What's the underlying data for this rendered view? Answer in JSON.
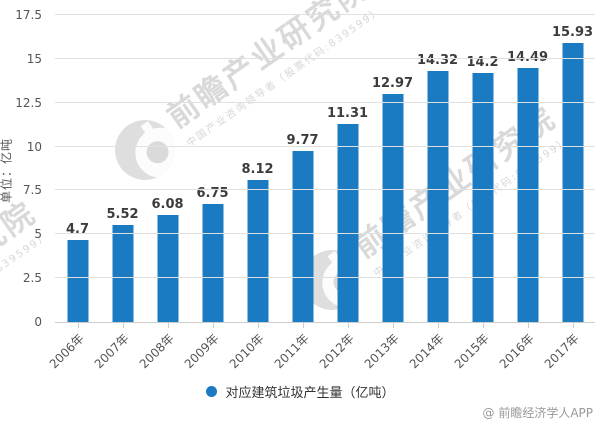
{
  "credit": "@ 前瞻经济学人APP",
  "watermark": {
    "brand": "前瞻产业研究院",
    "tagline": "中国产业咨询领导者（股票代码:839599）"
  },
  "chart_data": {
    "type": "bar",
    "title": "",
    "xlabel": "",
    "ylabel": "单位：亿吨",
    "categories": [
      "2006年",
      "2007年",
      "2008年",
      "2009年",
      "2010年",
      "2011年",
      "2012年",
      "2013年",
      "2014年",
      "2015年",
      "2016年",
      "2017年"
    ],
    "values": [
      4.7,
      5.52,
      6.08,
      6.75,
      8.12,
      9.77,
      11.31,
      12.97,
      14.32,
      14.2,
      14.49,
      15.93
    ],
    "value_labels": [
      "4.7",
      "5.52",
      "6.08",
      "6.75",
      "8.12",
      "9.77",
      "11.31",
      "12.97",
      "14.32",
      "14.2",
      "14.49",
      "15.93"
    ],
    "ylim": [
      0,
      17.5
    ],
    "yticks": [
      0,
      2.5,
      5,
      7.5,
      10,
      12.5,
      15,
      17.5
    ],
    "ytick_labels": [
      "0",
      "2.5",
      "5",
      "7.5",
      "10",
      "12.5",
      "15",
      "17.5"
    ],
    "grid": true,
    "legend_position": "bottom",
    "legend": [
      {
        "label": "对应建筑垃圾产生量（亿吨）",
        "color": "#1b7bc2"
      }
    ],
    "bar_color": "#1b7bc2",
    "colors": {
      "grid": "#e0e0e0",
      "axis": "#cccccc",
      "tick_label": "#555555",
      "value_label": "#3c3c3c",
      "legend_text": "#333333",
      "credit": "#999999",
      "watermark": "#bababa"
    }
  }
}
